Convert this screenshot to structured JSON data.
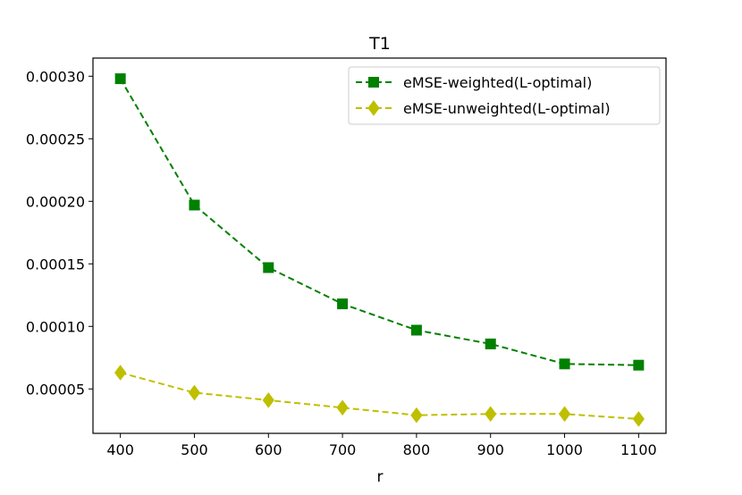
{
  "chart_data": {
    "type": "line",
    "title": "T1",
    "xlabel": "r",
    "ylabel": "",
    "x": [
      400,
      500,
      600,
      700,
      800,
      900,
      1000,
      1100
    ],
    "xticks": [
      "400",
      "500",
      "600",
      "700",
      "800",
      "900",
      "1000",
      "1100"
    ],
    "yticks": [
      "0.00005",
      "0.00010",
      "0.00015",
      "0.00020",
      "0.00025",
      "0.00030"
    ],
    "xlim": [
      363,
      1137
    ],
    "ylim": [
      1.45e-05,
      0.0003145
    ],
    "legend_position": "top-right",
    "series": [
      {
        "name": "eMSE-weighted(L-optimal)",
        "color": "#008000",
        "marker": "square",
        "linestyle": "dashed",
        "values": [
          0.000298,
          0.000197,
          0.000147,
          0.000118,
          9.7e-05,
          8.6e-05,
          7e-05,
          6.9e-05
        ]
      },
      {
        "name": "eMSE-unweighted(L-optimal)",
        "color": "#bfbf00",
        "marker": "diamond",
        "linestyle": "dashed",
        "values": [
          6.3e-05,
          4.7e-05,
          4.1e-05,
          3.5e-05,
          2.9e-05,
          3e-05,
          3e-05,
          2.6e-05
        ]
      }
    ]
  }
}
